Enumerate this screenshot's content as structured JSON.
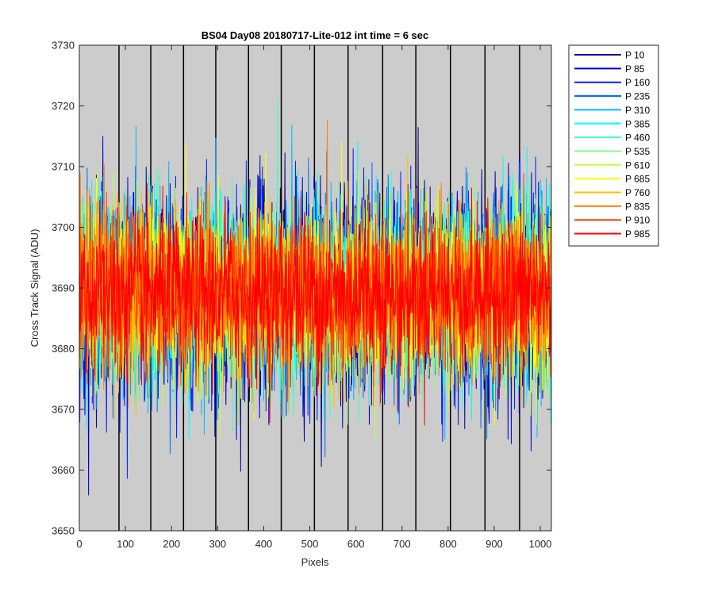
{
  "chart_data": {
    "type": "line",
    "title": "BS04 Day08 20180717-Lite-012 int time = 6 sec",
    "xlabel": "Pixels",
    "ylabel": "Cross Track Signal (ADU)",
    "xlim": [
      0,
      1024
    ],
    "ylim": [
      3650,
      3730
    ],
    "x_ticks": [
      0,
      100,
      200,
      300,
      400,
      500,
      600,
      700,
      800,
      900,
      1000
    ],
    "y_ticks": [
      3650,
      3660,
      3670,
      3680,
      3690,
      3700,
      3710,
      3720,
      3730
    ],
    "x_tick_labels": [
      "0",
      "100",
      "200",
      "300",
      "400",
      "500",
      "600",
      "700",
      "800",
      "900",
      "1000"
    ],
    "y_tick_labels": [
      "3650",
      "3660",
      "3670",
      "3680",
      "3690",
      "3700",
      "3710",
      "3720",
      "3730"
    ],
    "plot_background": "#cccccc",
    "grid": false,
    "legend_position": "outside-top-right",
    "vertical_markers": [
      86,
      155,
      226,
      296,
      367,
      438,
      510,
      583,
      658,
      730,
      805,
      880,
      955
    ],
    "noise_mean": 3689,
    "noise_std": 8,
    "series": [
      {
        "name": "P 10",
        "color": "#00008f"
      },
      {
        "name": "P 85",
        "color": "#0000d8"
      },
      {
        "name": "P 160",
        "color": "#0020ff"
      },
      {
        "name": "P 235",
        "color": "#0070ff"
      },
      {
        "name": "P 310",
        "color": "#00b8ff"
      },
      {
        "name": "P 385",
        "color": "#00ffff"
      },
      {
        "name": "P 460",
        "color": "#40ffbf"
      },
      {
        "name": "P 535",
        "color": "#80ff80"
      },
      {
        "name": "P 610",
        "color": "#bfff40"
      },
      {
        "name": "P 685",
        "color": "#ffff00"
      },
      {
        "name": "P 760",
        "color": "#ffbf00"
      },
      {
        "name": "P 835",
        "color": "#ff8000"
      },
      {
        "name": "P 910",
        "color": "#ff4000"
      },
      {
        "name": "P 985",
        "color": "#ff0000"
      }
    ]
  }
}
